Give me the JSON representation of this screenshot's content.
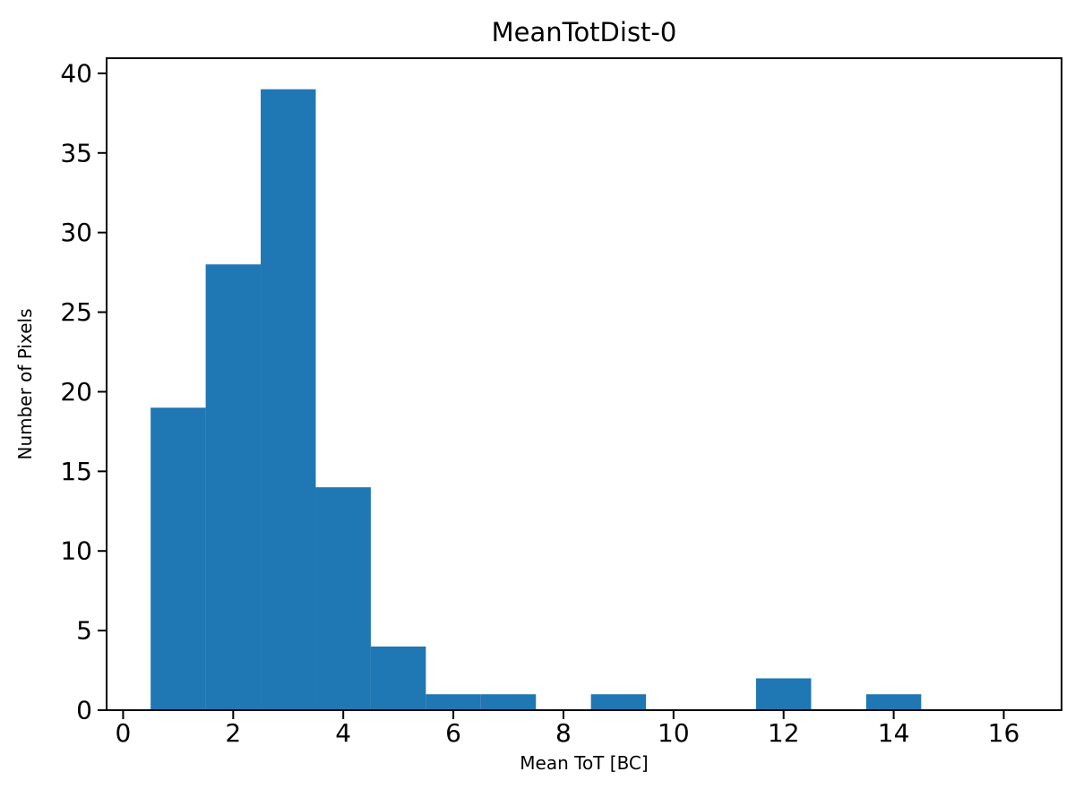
{
  "chart_data": {
    "type": "bar",
    "title": "MeanTotDist-0",
    "xlabel": "Mean ToT [BC]",
    "ylabel": "Number of Pixels",
    "bar_color": "#1f77b4",
    "axis_color": "#000000",
    "background_color": "#ffffff",
    "bin_width": 1,
    "bin_left_edges": [
      0.5,
      1.5,
      2.5,
      3.5,
      4.5,
      5.5,
      6.5,
      7.5,
      8.5,
      9.5,
      10.5,
      11.5,
      12.5,
      13.5,
      14.5,
      15.5
    ],
    "values": [
      19,
      28,
      39,
      14,
      4,
      1,
      1,
      0,
      1,
      0,
      0,
      2,
      0,
      1,
      0,
      0
    ],
    "xlim": [
      -0.3,
      17.05
    ],
    "ylim": [
      0,
      40.95
    ],
    "xticks": [
      0,
      2,
      4,
      6,
      8,
      10,
      12,
      14,
      16
    ],
    "yticks": [
      0,
      5,
      10,
      15,
      20,
      25,
      30,
      35,
      40
    ],
    "grid": false,
    "legend": "none"
  }
}
